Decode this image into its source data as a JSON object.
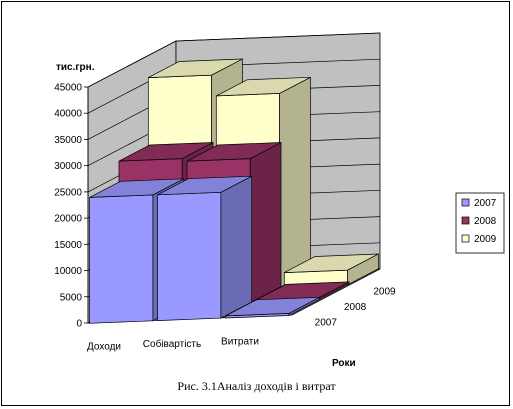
{
  "chart_data": {
    "type": "bar",
    "title": "",
    "ylabel": "тис.грн.",
    "zlabel": "Роки",
    "categories": [
      "Доходи",
      "Собівартість",
      "Витрати"
    ],
    "yticks": [
      "0",
      "5000",
      "10000",
      "15000",
      "20000",
      "25000",
      "30000",
      "35000",
      "40000",
      "45000"
    ],
    "ylim": [
      0,
      45000
    ],
    "series": [
      {
        "name": "2007",
        "color": "#9999ff",
        "values": [
          24000,
          24000,
          400
        ]
      },
      {
        "name": "2008",
        "color": "#993366",
        "values": [
          28000,
          27500,
          400
        ]
      },
      {
        "name": "2009",
        "color": "#ffffcc",
        "values": [
          41000,
          37000,
          2800
        ]
      }
    ],
    "depth_labels": [
      "2007",
      "2008",
      "2009"
    ],
    "legend_position": "right",
    "grid": true
  },
  "caption": "Рис. 3.1Аналіз доходів і витрат"
}
